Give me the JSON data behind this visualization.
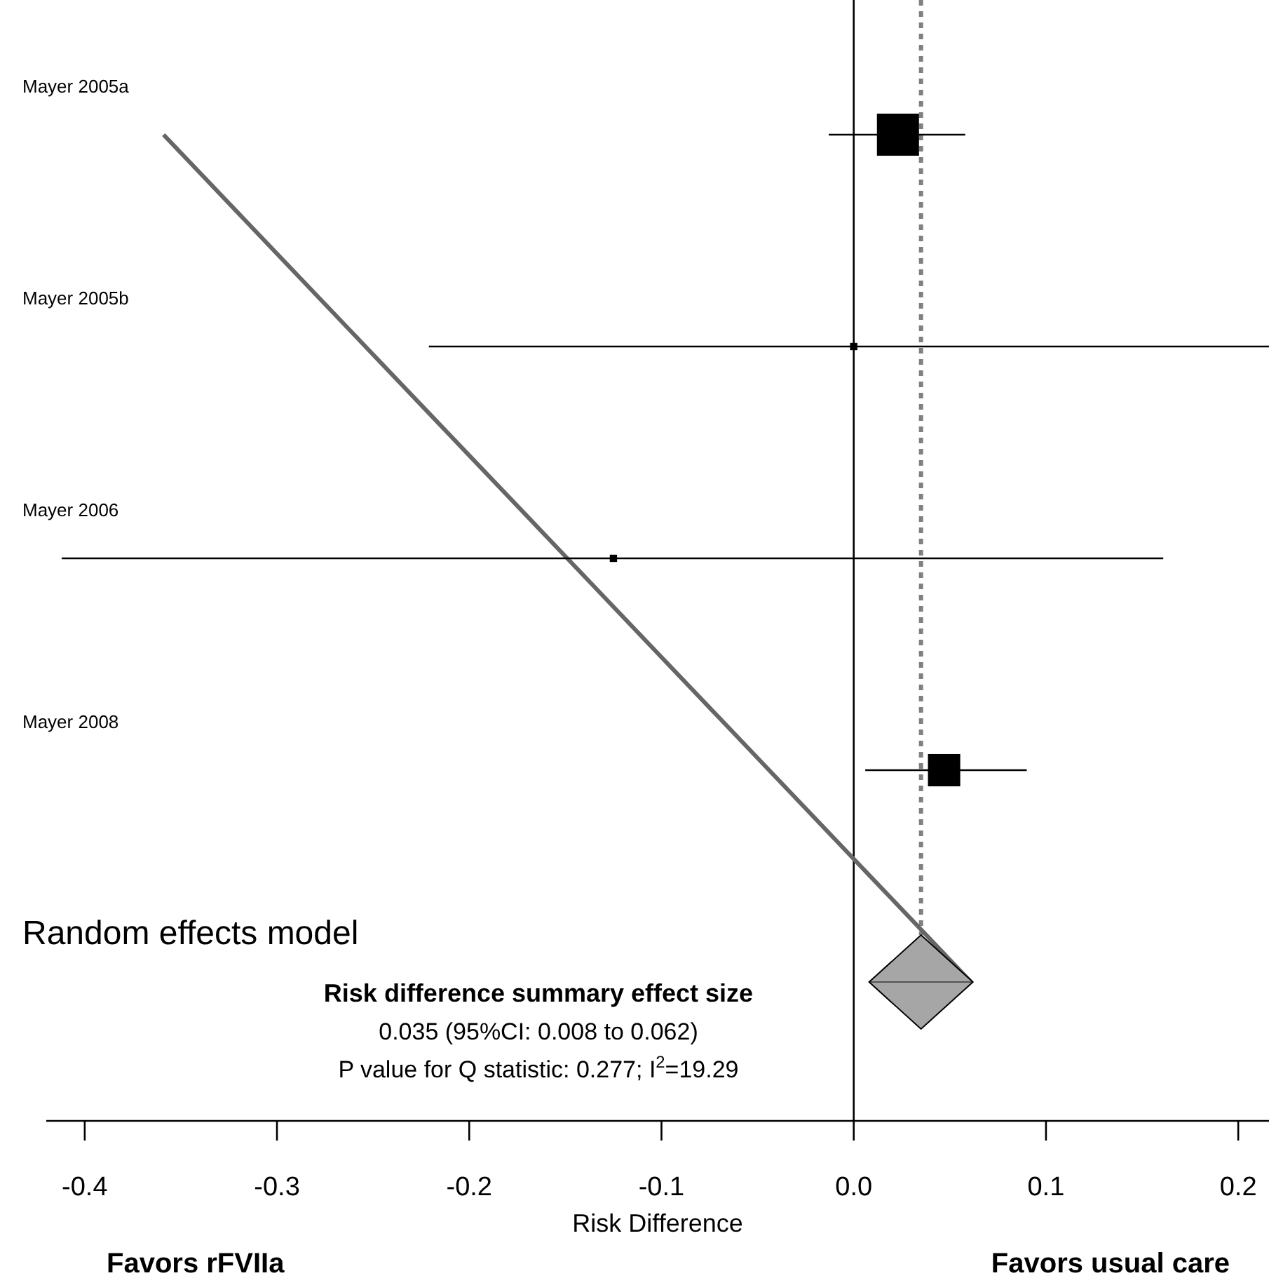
{
  "chart_data": {
    "type": "scatter",
    "orientation": "horizontal",
    "xlabel": "Risk Difference",
    "categories": [
      "Mayer 2005a",
      "Mayer 2005b",
      "Mayer 2006",
      "Mayer 2008",
      "Random effects model"
    ],
    "xlim": [
      -0.42,
      0.216
    ],
    "xticks": [
      {
        "value": -0.4,
        "label": "-0.4"
      },
      {
        "value": -0.3,
        "label": "-0.3"
      },
      {
        "value": -0.2,
        "label": "-0.2"
      },
      {
        "value": -0.1,
        "label": "-0.1"
      },
      {
        "value": 0,
        "label": "0.0"
      },
      {
        "value": 0.1,
        "label": "0.1"
      },
      {
        "value": 0.2,
        "label": "0.2"
      }
    ],
    "series": [
      {
        "type": "bubble",
        "marker": "square",
        "color": "#000000",
        "values": [
          0.023,
          0,
          -0.125,
          0.047,
          null
        ],
        "errors": [
          [
            -0.013,
            0.058
          ],
          [
            -0.221,
            0.216
          ],
          [
            -0.412,
            0.161
          ],
          [
            0.006,
            0.09
          ],
          null
        ],
        "sizes": [
          1,
          0.03,
          0.03,
          0.59,
          null
        ]
      },
      {
        "marker": "diamond",
        "color": "#a6a6a6",
        "values": [
          null,
          null,
          null,
          null,
          0.035
        ],
        "errors": [
          null,
          null,
          null,
          null,
          [
            0.008,
            0.062
          ]
        ]
      },
      {
        "type": "line",
        "color": "#666666",
        "values": [
          -0.359,
          -0.254,
          -0.149,
          -0.044,
          0.061
        ]
      }
    ],
    "ref_lines": [
      {
        "axis": "x",
        "value": 0,
        "color": "#000000",
        "line_style": "solid"
      },
      {
        "axis": "x",
        "value": 0.035,
        "color": "#808080",
        "line_style": "dotted"
      }
    ],
    "grid": false,
    "annotations": [
      "Risk difference summary effect size",
      "0.035 (95%CI: 0.008 to 0.062)",
      "P value for Q statistic: 0.277; I$^{2}$=19.29",
      "Favors rFVIIa",
      "Favors usual care"
    ]
  }
}
